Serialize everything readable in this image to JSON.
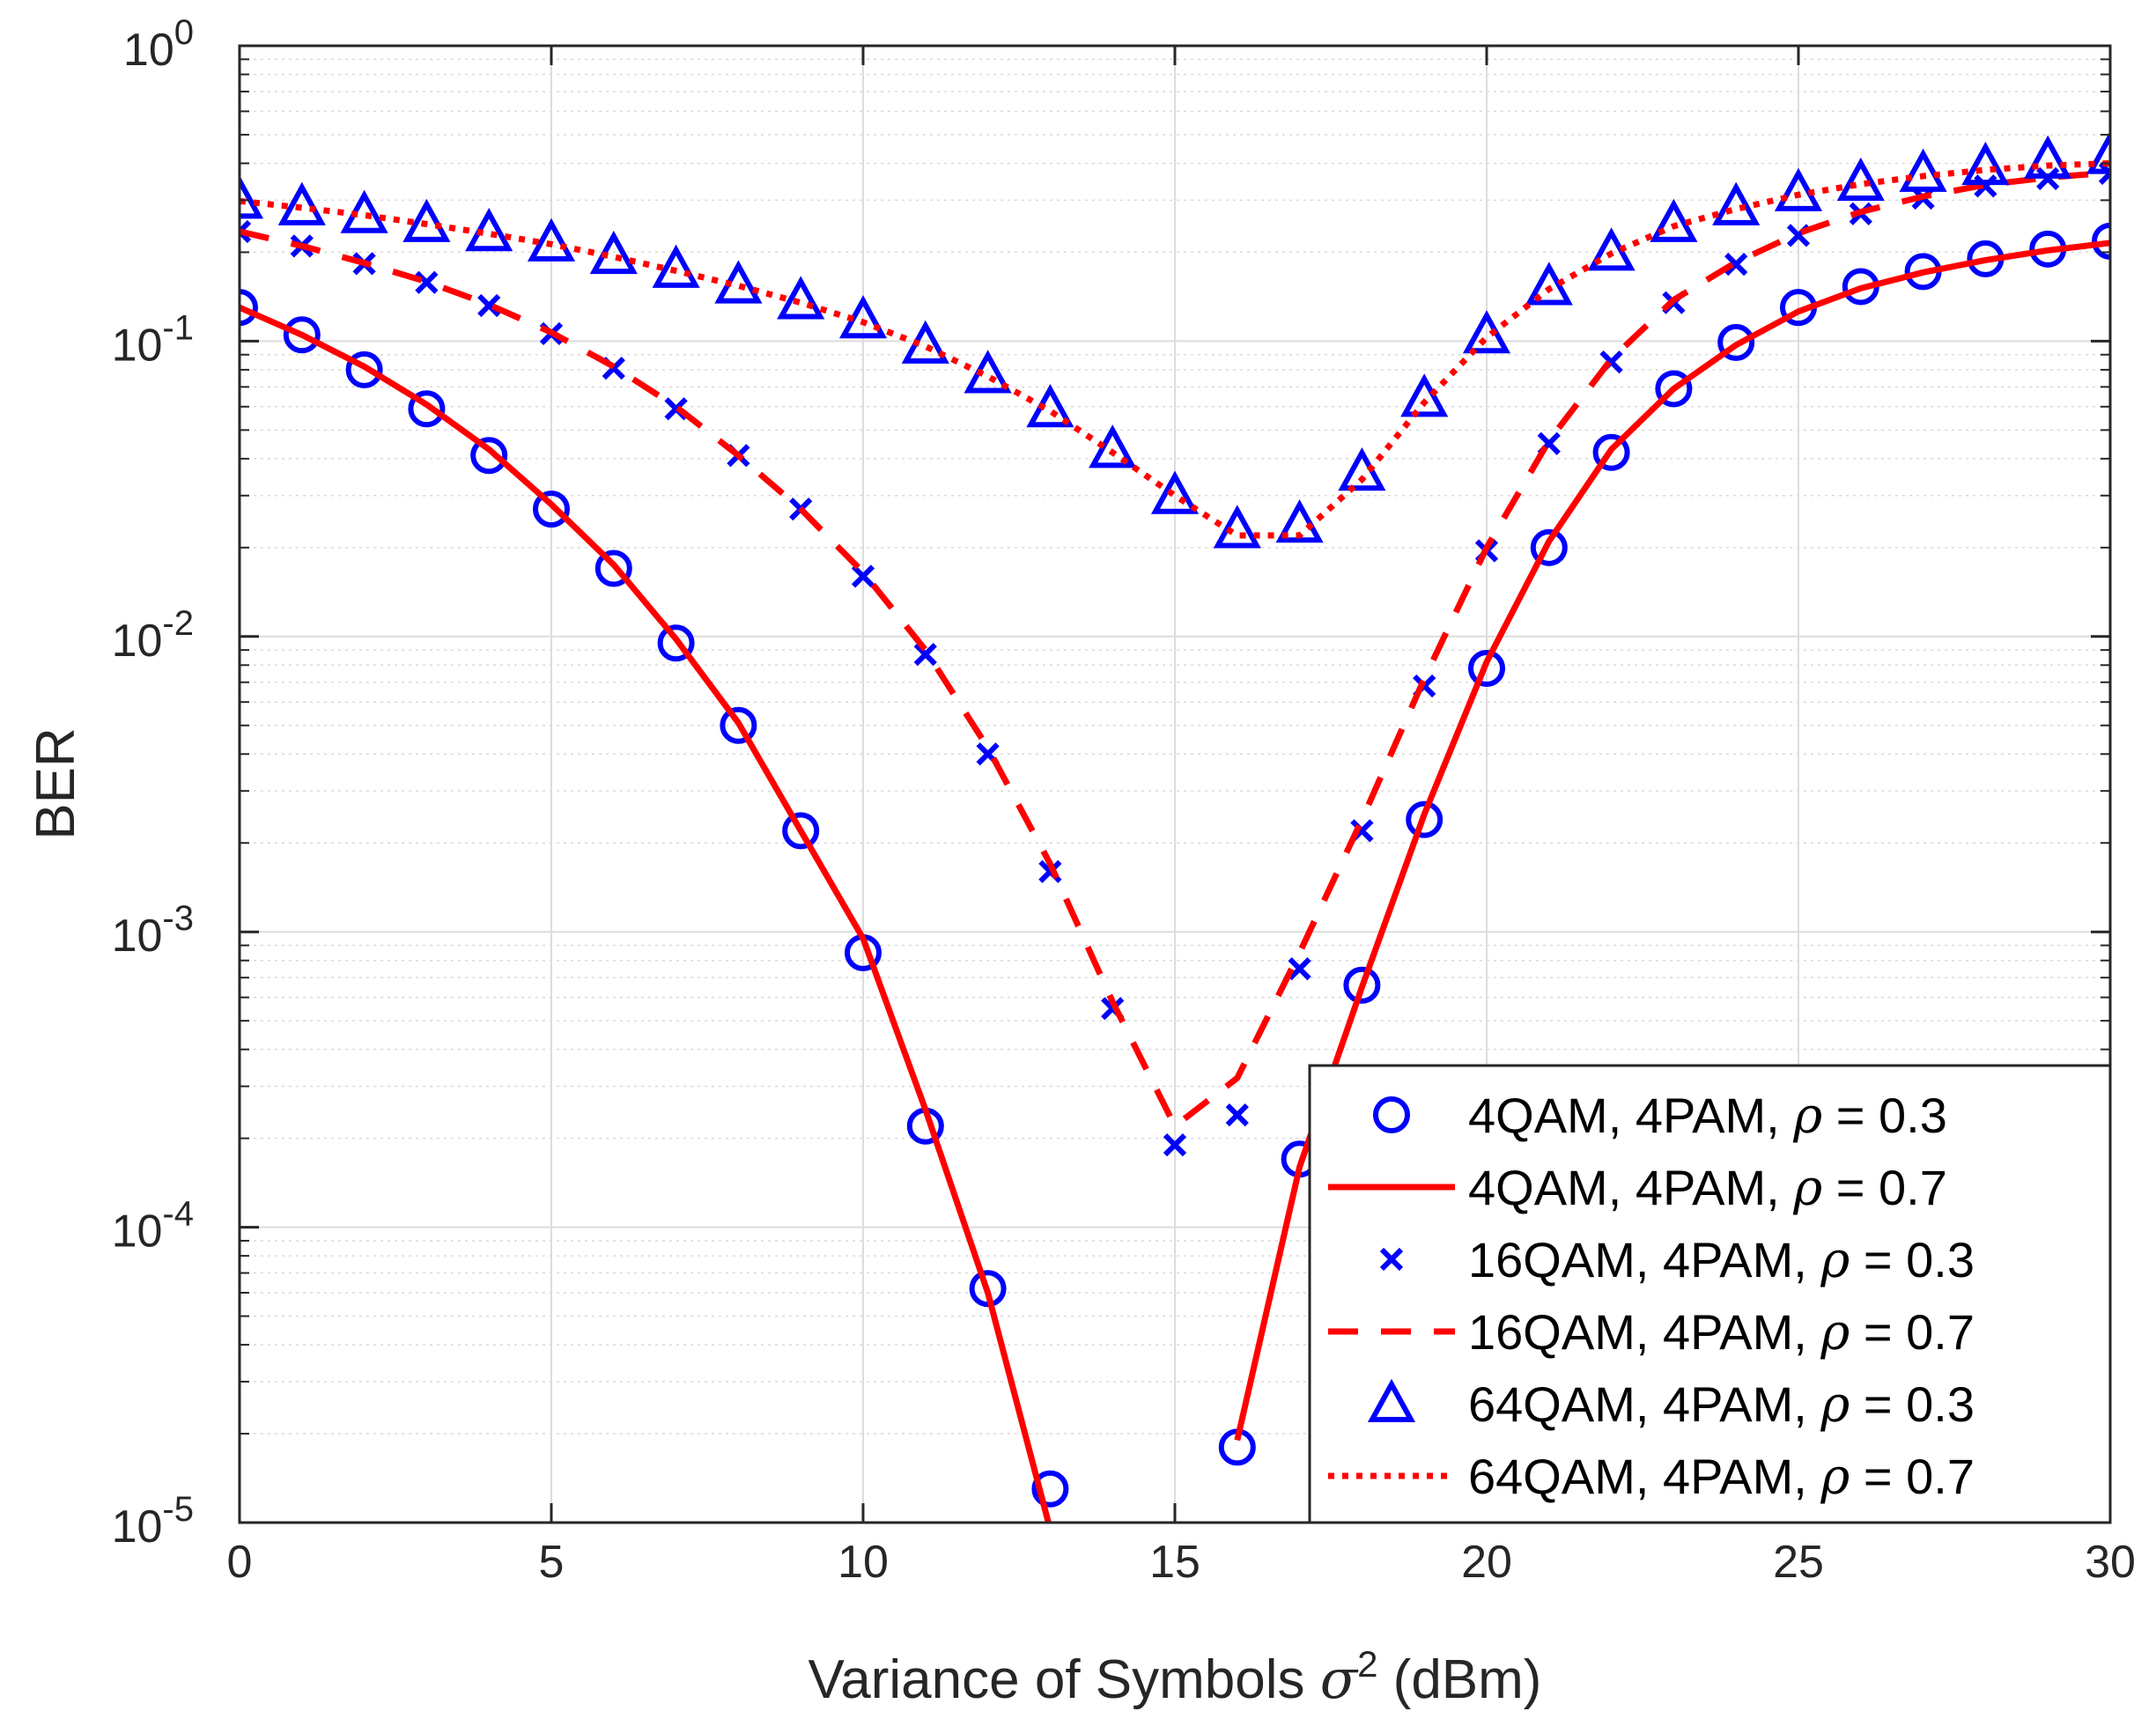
{
  "chart_data": {
    "type": "line",
    "xlabel": {
      "prefix": "Variance of Symbols ",
      "symbol": "σ",
      "superscript": "2",
      "suffix": " (dBm)"
    },
    "ylabel": "BER",
    "xlim": [
      0,
      30
    ],
    "ylim": [
      1e-05,
      1
    ],
    "yscale": "log",
    "grid": true,
    "x_ticks": [
      0,
      5,
      10,
      15,
      20,
      25,
      30
    ],
    "x_tick_labels": [
      "0",
      "5",
      "10",
      "15",
      "20",
      "25",
      "30"
    ],
    "y_ticks": [
      {
        "value": 1,
        "base": "10",
        "exp": "0"
      },
      {
        "value": 0.1,
        "base": "10",
        "exp": "-1"
      },
      {
        "value": 0.01,
        "base": "10",
        "exp": "-2"
      },
      {
        "value": 0.001,
        "base": "10",
        "exp": "-3"
      },
      {
        "value": 0.0001,
        "base": "10",
        "exp": "-4"
      },
      {
        "value": 1e-05,
        "base": "10",
        "exp": "-5"
      }
    ],
    "legend_position": "bottom-right",
    "series": [
      {
        "name": "4QAM, 4PAM, ρ = 0.3",
        "label": "4QAM, 4PAM,",
        "rho": "0.3",
        "marker": "circle",
        "line": "none",
        "color": "#0000ff",
        "x": [
          0,
          1,
          2,
          3,
          4,
          5,
          6,
          7,
          8,
          9,
          10,
          11,
          12,
          13,
          16,
          17,
          18,
          19,
          20,
          21,
          22,
          23,
          24,
          25,
          26,
          27,
          28,
          29,
          30
        ],
        "y": [
          0.13,
          0.105,
          0.08,
          0.059,
          0.041,
          0.027,
          0.017,
          0.0095,
          0.005,
          0.0022,
          0.00085,
          0.00022,
          6.2e-05,
          1.3e-05,
          1.8e-05,
          0.00017,
          0.00066,
          0.0024,
          0.0078,
          0.02,
          0.042,
          0.069,
          0.099,
          0.13,
          0.153,
          0.172,
          0.19,
          0.205,
          0.218
        ]
      },
      {
        "name": "4QAM, 4PAM, ρ = 0.7",
        "label": "4QAM, 4PAM,",
        "rho": "0.7",
        "marker": "none",
        "line": "solid",
        "color": "#ff0000",
        "segments": [
          {
            "x": [
              0,
              1,
              2,
              3,
              4,
              5,
              6,
              7,
              8,
              9,
              10,
              11,
              12,
              13
            ],
            "y": [
              0.13,
              0.105,
              0.082,
              0.061,
              0.043,
              0.028,
              0.0175,
              0.0098,
              0.0051,
              0.0022,
              0.00095,
              0.00025,
              6e-05,
              9.5e-06
            ]
          },
          {
            "x": [
              16,
              17,
              18,
              19,
              20,
              21,
              22,
              23,
              24,
              25,
              26,
              27,
              28,
              29,
              30
            ],
            "y": [
              1.9e-05,
              0.00016,
              0.00065,
              0.0025,
              0.0082,
              0.021,
              0.043,
              0.069,
              0.097,
              0.126,
              0.151,
              0.171,
              0.188,
              0.203,
              0.215
            ]
          }
        ]
      },
      {
        "name": "16QAM, 4PAM, ρ = 0.3",
        "label": "16QAM, 4PAM,",
        "rho": "0.3",
        "marker": "x",
        "line": "none",
        "color": "#0000ff",
        "x": [
          0,
          1,
          2,
          3,
          4,
          5,
          6,
          7,
          8,
          9,
          10,
          11,
          12,
          13,
          14,
          15,
          16,
          17,
          18,
          19,
          20,
          21,
          22,
          23,
          24,
          25,
          26,
          27,
          28,
          29,
          30
        ],
        "y": [
          0.235,
          0.21,
          0.183,
          0.158,
          0.132,
          0.106,
          0.081,
          0.059,
          0.041,
          0.027,
          0.016,
          0.0087,
          0.004,
          0.0016,
          0.00055,
          0.00019,
          0.00024,
          0.00075,
          0.0022,
          0.0068,
          0.0195,
          0.045,
          0.085,
          0.135,
          0.182,
          0.228,
          0.27,
          0.305,
          0.335,
          0.355,
          0.37
        ]
      },
      {
        "name": "16QAM, 4PAM, ρ = 0.7",
        "label": "16QAM, 4PAM,",
        "rho": "0.7",
        "marker": "none",
        "line": "dashed",
        "color": "#ff0000",
        "x": [
          0,
          1,
          2,
          3,
          4,
          5,
          6,
          7,
          8,
          9,
          10,
          11,
          12,
          13,
          14,
          15,
          16,
          17,
          18,
          19,
          20,
          21,
          22,
          23,
          24,
          25,
          26,
          27,
          28,
          29,
          30
        ],
        "y": [
          0.235,
          0.21,
          0.184,
          0.159,
          0.133,
          0.107,
          0.082,
          0.06,
          0.041,
          0.027,
          0.0165,
          0.009,
          0.0042,
          0.0017,
          0.00058,
          0.00022,
          0.00032,
          0.00085,
          0.0024,
          0.0072,
          0.02,
          0.046,
          0.087,
          0.138,
          0.185,
          0.232,
          0.274,
          0.309,
          0.338,
          0.358,
          0.372
        ]
      },
      {
        "name": "64QAM, 4PAM, ρ = 0.3",
        "label": "64QAM, 4PAM,",
        "rho": "0.3",
        "marker": "triangle",
        "line": "none",
        "color": "#0000ff",
        "x": [
          0,
          1,
          2,
          3,
          4,
          5,
          6,
          7,
          8,
          9,
          10,
          11,
          12,
          13,
          14,
          15,
          16,
          17,
          18,
          19,
          20,
          21,
          22,
          23,
          24,
          25,
          26,
          27,
          28,
          29,
          30
        ],
        "y": [
          0.3,
          0.285,
          0.268,
          0.25,
          0.233,
          0.215,
          0.195,
          0.175,
          0.155,
          0.137,
          0.118,
          0.097,
          0.077,
          0.059,
          0.043,
          0.03,
          0.023,
          0.024,
          0.036,
          0.064,
          0.105,
          0.153,
          0.2,
          0.25,
          0.285,
          0.318,
          0.345,
          0.37,
          0.39,
          0.41,
          0.425
        ]
      },
      {
        "name": "64QAM, 4PAM, ρ = 0.7",
        "label": "64QAM, 4PAM,",
        "rho": "0.7",
        "marker": "none",
        "line": "dotted",
        "color": "#ff0000",
        "x": [
          0,
          1,
          2,
          3,
          4,
          5,
          6,
          7,
          8,
          9,
          10,
          11,
          12,
          13,
          14,
          15,
          16,
          17,
          18,
          19,
          20,
          21,
          22,
          23,
          24,
          25,
          26,
          27,
          28,
          29,
          30
        ],
        "y": [
          0.298,
          0.283,
          0.267,
          0.249,
          0.231,
          0.213,
          0.193,
          0.173,
          0.154,
          0.135,
          0.116,
          0.096,
          0.076,
          0.058,
          0.042,
          0.03,
          0.022,
          0.022,
          0.034,
          0.062,
          0.103,
          0.15,
          0.198,
          0.245,
          0.28,
          0.313,
          0.34,
          0.362,
          0.38,
          0.393,
          0.4
        ]
      }
    ]
  }
}
